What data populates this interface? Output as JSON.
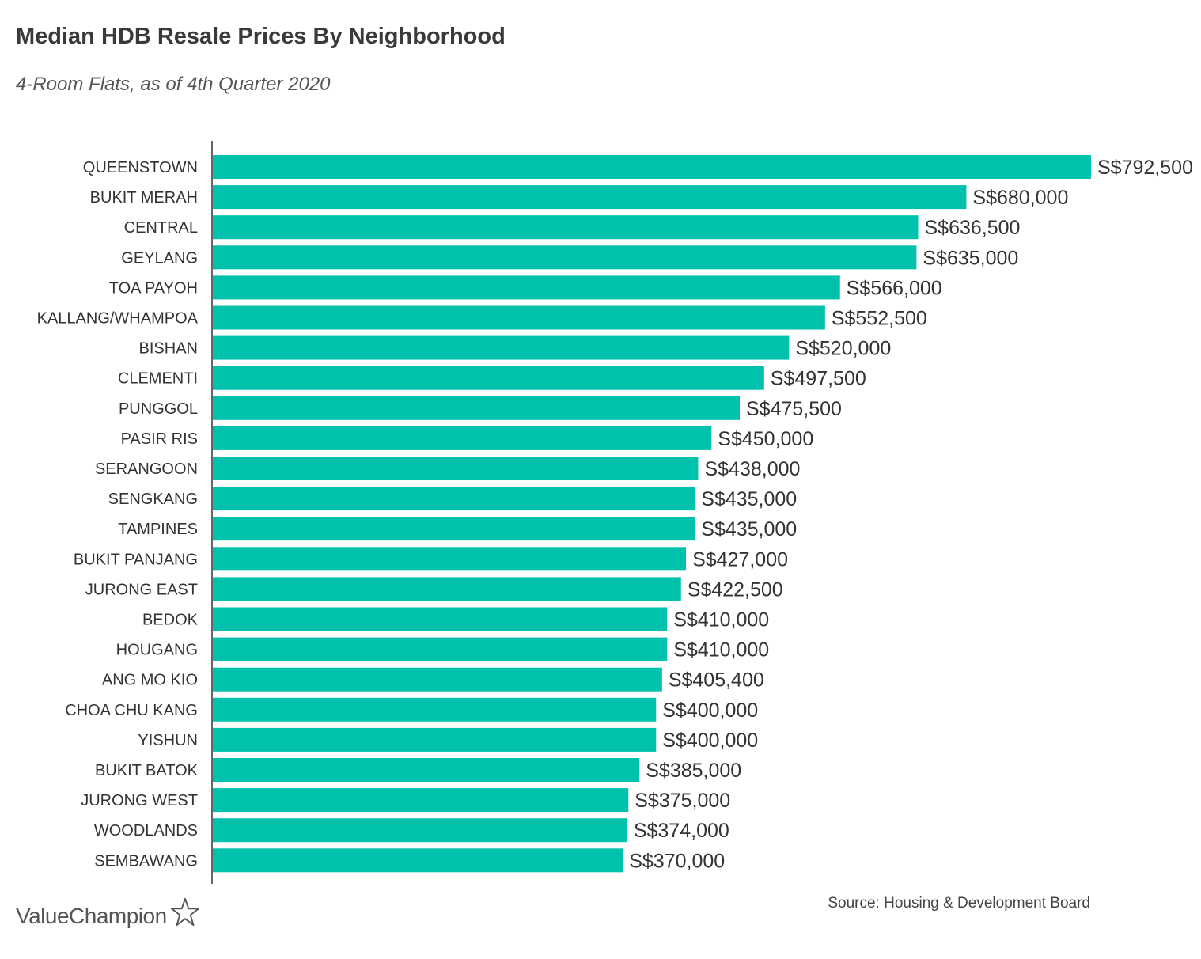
{
  "header": {
    "title": "Median HDB Resale Prices By Neighborhood",
    "subtitle": "4-Room Flats, as of 4th Quarter 2020"
  },
  "footer": {
    "source": "Source: Housing & Development Board",
    "logo_text": "ValueChampion"
  },
  "colors": {
    "bar": "#00c2ac",
    "axis": "#333333",
    "text": "#333333"
  },
  "chart_data": {
    "type": "bar",
    "orientation": "horizontal",
    "title": "Median HDB Resale Prices By Neighborhood",
    "subtitle": "4-Room Flats, as of 4th Quarter 2020",
    "xlabel": "",
    "ylabel": "",
    "xlim": [
      0,
      800000
    ],
    "grid": false,
    "categories": [
      "QUEENSTOWN",
      "BUKIT MERAH",
      "CENTRAL",
      "GEYLANG",
      "TOA PAYOH",
      "KALLANG/WHAMPOA",
      "BISHAN",
      "CLEMENTI",
      "PUNGGOL",
      "PASIR RIS",
      "SERANGOON",
      "SENGKANG",
      "TAMPINES",
      "BUKIT PANJANG",
      "JURONG EAST",
      "BEDOK",
      "HOUGANG",
      "ANG MO KIO",
      "CHOA CHU KANG",
      "YISHUN",
      "BUKIT BATOK",
      "JURONG WEST",
      "WOODLANDS",
      "SEMBAWANG"
    ],
    "values": [
      792500,
      680000,
      636500,
      635000,
      566000,
      552500,
      520000,
      497500,
      475500,
      450000,
      438000,
      435000,
      435000,
      427000,
      422500,
      410000,
      410000,
      405400,
      400000,
      400000,
      385000,
      375000,
      374000,
      370000
    ],
    "value_labels": [
      "S$792,500",
      "S$680,000",
      "S$636,500",
      "S$635,000",
      "S$566,000",
      "S$552,500",
      "S$520,000",
      "S$497,500",
      "S$475,500",
      "S$450,000",
      "S$438,000",
      "S$435,000",
      "S$435,000",
      "S$427,000",
      "S$422,500",
      "S$410,000",
      "S$410,000",
      "S$405,400",
      "S$400,000",
      "S$400,000",
      "S$385,000",
      "S$375,000",
      "S$374,000",
      "S$370,000"
    ]
  }
}
